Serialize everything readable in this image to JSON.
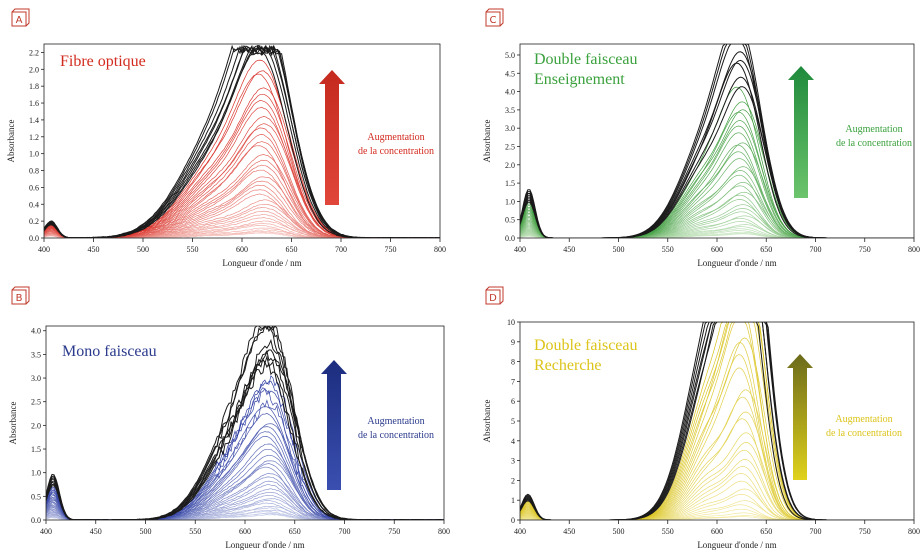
{
  "chart_data": [
    {
      "id": "A",
      "type": "line",
      "badge": "A",
      "title": "Fibre optique",
      "annotation": [
        "Augmentation",
        "de la concentration"
      ],
      "xlabel": "Longueur d'onde / nm",
      "ylabel": "Absorbance",
      "xlim": [
        400,
        800
      ],
      "ylim": [
        0,
        2.3
      ],
      "xticks": [
        400,
        450,
        500,
        550,
        600,
        650,
        700,
        750,
        800
      ],
      "yticks": [
        0.0,
        0.2,
        0.4,
        0.6,
        0.8,
        1.0,
        1.2,
        1.4,
        1.6,
        1.8,
        2.0,
        2.2
      ],
      "ytick_decimals": 1,
      "grid": false,
      "colors": {
        "title": "#d22a1e",
        "dark": "#1a1a1a",
        "light": "#f7c9c4",
        "mid": "#d83027",
        "arrow_top": "#c42a1e",
        "arrow_bottom": "#e0463a"
      },
      "series_count": 44,
      "main_peak": {
        "x": 625,
        "width": 28,
        "min_height": 0.05,
        "max_height": 2.27
      },
      "secondary_peak": {
        "x": 407,
        "width": 9,
        "ratio": 0.08
      },
      "shoulder": {
        "x": 578,
        "width": 42,
        "ratio": 0.55
      },
      "saturation": 2.28,
      "noise_sat": 0.05,
      "baseline_noise": 0.01
    },
    {
      "id": "C",
      "type": "line",
      "badge": "C",
      "title": "Double faisceau",
      "subtitle": "Enseignement",
      "annotation": [
        "Augmentation",
        "de la concentration"
      ],
      "xlabel": "Longueur d'onde / nm",
      "ylabel": "Absorbance",
      "xlim": [
        400,
        800
      ],
      "ylim": [
        0,
        5.3
      ],
      "xticks": [
        400,
        450,
        500,
        550,
        600,
        650,
        700,
        750,
        800
      ],
      "yticks": [
        0.0,
        0.5,
        1.0,
        1.5,
        2.0,
        2.5,
        3.0,
        3.5,
        4.0,
        4.5,
        5.0
      ],
      "ytick_decimals": 1,
      "grid": false,
      "colors": {
        "title": "#3aa13c",
        "dark": "#1a1a1a",
        "light": "#cfe9c8",
        "mid": "#3a9a3a",
        "arrow_top": "#1f8a3c",
        "arrow_bottom": "#6cc46c"
      },
      "series_count": 40,
      "main_peak": {
        "x": 628,
        "width": 22,
        "min_height": 0.1,
        "max_height": 4.7
      },
      "secondary_peak": {
        "x": 409,
        "width": 9,
        "ratio": 0.28
      },
      "shoulder": {
        "x": 590,
        "width": 30,
        "ratio": 0.55
      },
      "saturation": 5.3,
      "noise_sat": 0.0,
      "baseline_noise": 0.0
    },
    {
      "id": "B",
      "type": "line",
      "badge": "B",
      "title": "Mono faisceau",
      "annotation": [
        "Augmentation",
        "de la concentration"
      ],
      "xlabel": "Longueur d'onde / nm",
      "ylabel": "Absorbance",
      "xlim": [
        400,
        800
      ],
      "ylim": [
        0,
        4.1
      ],
      "xticks": [
        400,
        450,
        500,
        550,
        600,
        650,
        700,
        750,
        800
      ],
      "yticks": [
        0.0,
        0.5,
        1.0,
        1.5,
        2.0,
        2.5,
        3.0,
        3.5,
        4.0
      ],
      "ytick_decimals": 1,
      "grid": false,
      "colors": {
        "title": "#2a3a8c",
        "dark": "#1a1a1a",
        "light": "#cdd3ec",
        "mid": "#2a3aa0",
        "arrow_top": "#1c2d7e",
        "arrow_bottom": "#3a4fb0"
      },
      "series_count": 42,
      "main_peak": {
        "x": 628,
        "width": 24,
        "min_height": 0.1,
        "max_height": 3.4
      },
      "secondary_peak": {
        "x": 407,
        "width": 9,
        "ratio": 0.28
      },
      "shoulder": {
        "x": 590,
        "width": 32,
        "ratio": 0.55
      },
      "saturation": 4.1,
      "noise_sat": 0.0,
      "baseline_noise": 0.02,
      "peak_noise": 0.18
    },
    {
      "id": "D",
      "type": "line",
      "badge": "D",
      "title": "Double faisceau",
      "subtitle": "Recherche",
      "annotation": [
        "Augmentation",
        "de la concentration"
      ],
      "xlabel": "Longueur d'onde / nm",
      "ylabel": "Absorbance",
      "xlim": [
        400,
        800
      ],
      "ylim": [
        0,
        10
      ],
      "xticks": [
        400,
        450,
        500,
        550,
        600,
        650,
        700,
        750,
        800
      ],
      "yticks": [
        0,
        1,
        2,
        3,
        4,
        5,
        6,
        7,
        8,
        9,
        10
      ],
      "ytick_decimals": 0,
      "grid": false,
      "colors": {
        "title": "#dcc41a",
        "dark": "#1a1a1a",
        "light": "#f5ecaa",
        "mid": "#d8c21a",
        "arrow_top": "#6b6a1a",
        "arrow_bottom": "#e0d21c"
      },
      "series_count": 36,
      "main_peak": {
        "x": 630,
        "width": 20,
        "min_height": 0.15,
        "max_height": 16.0
      },
      "secondary_peak": {
        "x": 408,
        "width": 9,
        "ratio": 0.08
      },
      "shoulder": {
        "x": 595,
        "width": 28,
        "ratio": 0.6
      },
      "saturation": 10.0,
      "noise_sat": 0.0,
      "baseline_noise": 0.0
    }
  ]
}
